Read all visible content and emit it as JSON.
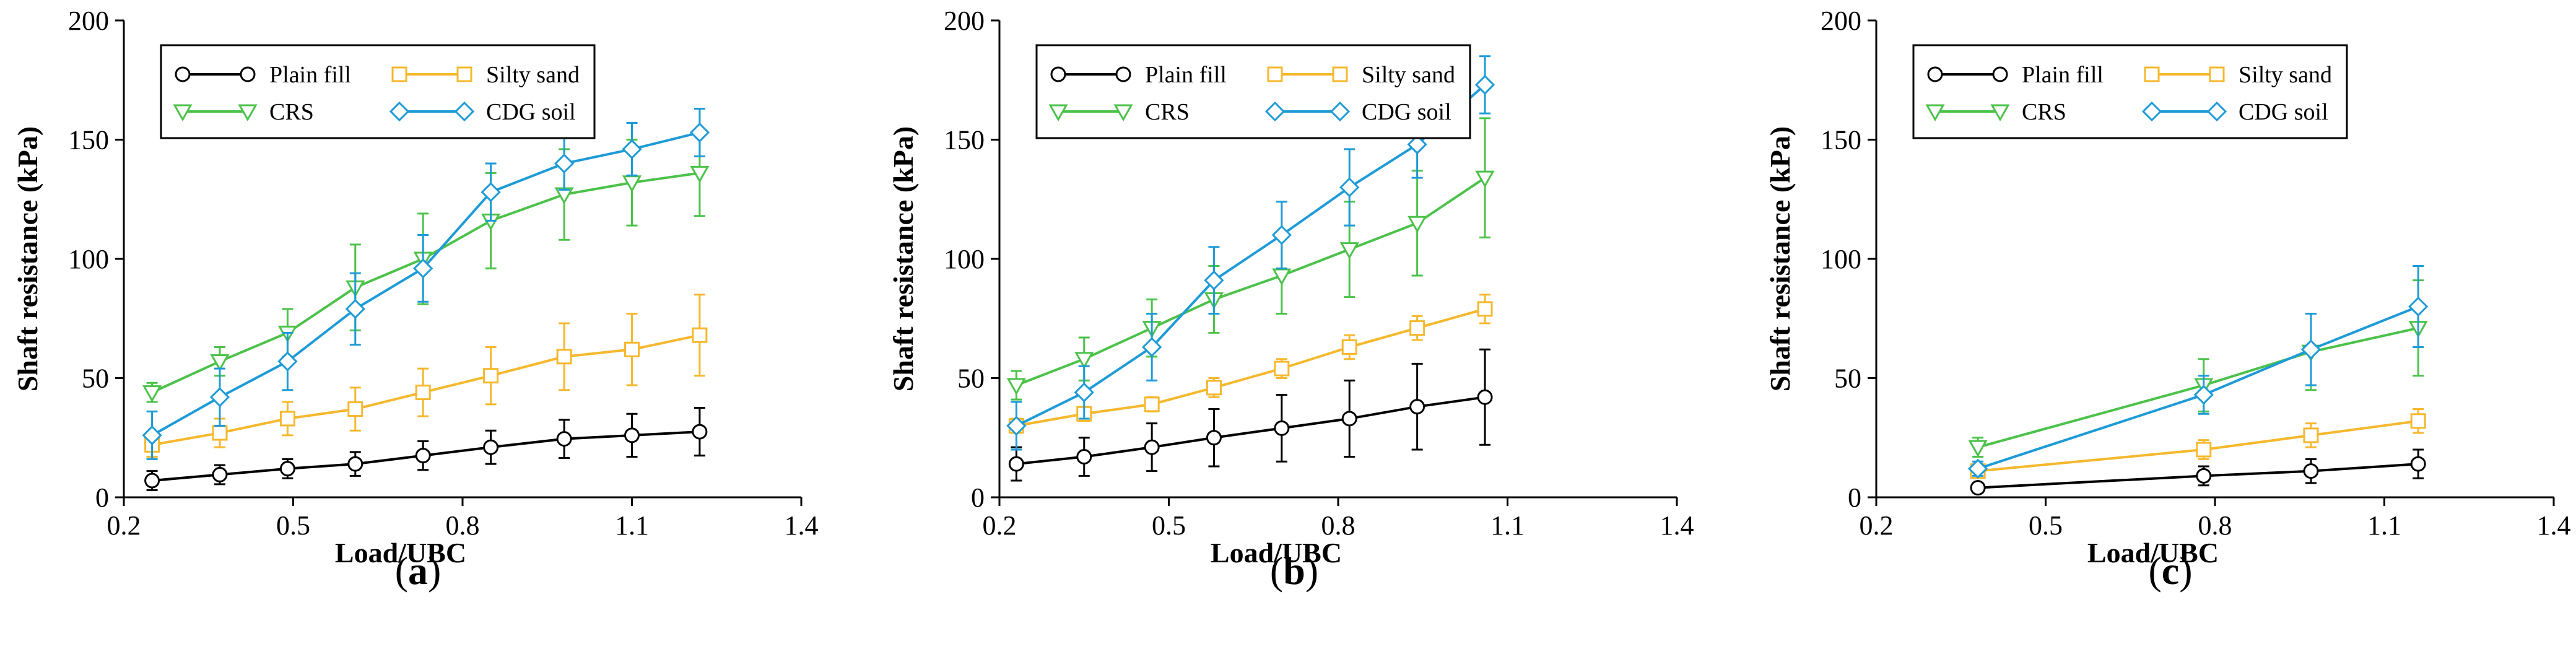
{
  "colors": {
    "plain_fill": "#000000",
    "silty_sand": "#F5B82E",
    "crs": "#4CC24A",
    "cdg_soil": "#1E9BD7"
  },
  "panel_labels": [
    {
      "open": "(",
      "letter": "a",
      "close": ")"
    },
    {
      "open": "(",
      "letter": "b",
      "close": ")"
    },
    {
      "open": "(",
      "letter": "c",
      "close": ")"
    }
  ],
  "chart_data": [
    {
      "type": "line",
      "panel": "a",
      "xlabel": "Load/UBC",
      "ylabel": "Shaft resistance (kPa)",
      "xlim": [
        0.2,
        1.4
      ],
      "ylim": [
        0,
        200
      ],
      "xticks": [
        "0.2",
        "0.5",
        "0.8",
        "1.1",
        "1.4"
      ],
      "yticks": [
        "0",
        "50",
        "100",
        "150",
        "200"
      ],
      "legend_position": "top-left",
      "series": [
        {
          "name": "Plain fill",
          "key": "plain_fill",
          "marker": "circle",
          "x": [
            0.25,
            0.37,
            0.49,
            0.61,
            0.73,
            0.85,
            0.98,
            1.1,
            1.22
          ],
          "y": [
            7,
            9.5,
            12,
            14,
            17.5,
            21,
            24.5,
            26,
            27.5
          ],
          "err": [
            4,
            4,
            4,
            5,
            6,
            7,
            8,
            9,
            10
          ]
        },
        {
          "name": "Silty sand",
          "key": "silty_sand",
          "marker": "square",
          "x": [
            0.25,
            0.37,
            0.49,
            0.61,
            0.73,
            0.85,
            0.98,
            1.1,
            1.22
          ],
          "y": [
            22,
            27,
            33,
            37,
            44,
            51,
            59,
            62,
            68
          ],
          "err": [
            5,
            6,
            7,
            9,
            10,
            12,
            14,
            15,
            17
          ]
        },
        {
          "name": "CRS",
          "key": "crs",
          "marker": "triangle-down",
          "x": [
            0.25,
            0.37,
            0.49,
            0.61,
            0.73,
            0.85,
            0.98,
            1.1,
            1.22
          ],
          "y": [
            44,
            57,
            69,
            88,
            100,
            116,
            127,
            132,
            136
          ],
          "err": [
            4,
            6,
            10,
            18,
            19,
            20,
            19,
            18,
            18
          ]
        },
        {
          "name": "CDG soil",
          "key": "cdg_soil",
          "marker": "diamond",
          "x": [
            0.25,
            0.37,
            0.49,
            0.61,
            0.73,
            0.85,
            0.98,
            1.1,
            1.22
          ],
          "y": [
            26,
            42,
            57,
            79,
            96,
            128,
            140,
            146,
            153
          ],
          "err": [
            10,
            12,
            12,
            15,
            14,
            12,
            11,
            11,
            10
          ]
        }
      ]
    },
    {
      "type": "line",
      "panel": "b",
      "xlabel": "Load/UBC",
      "ylabel": "Shaft resistance (kPa)",
      "xlim": [
        0.2,
        1.4
      ],
      "ylim": [
        0,
        200
      ],
      "xticks": [
        "0.2",
        "0.5",
        "0.8",
        "1.1",
        "1.4"
      ],
      "yticks": [
        "0",
        "50",
        "100",
        "150",
        "200"
      ],
      "legend_position": "top-left",
      "series": [
        {
          "name": "Plain fill",
          "key": "plain_fill",
          "marker": "circle",
          "x": [
            0.23,
            0.35,
            0.47,
            0.58,
            0.7,
            0.82,
            0.94,
            1.06
          ],
          "y": [
            14,
            17,
            21,
            25,
            29,
            33,
            38,
            42
          ],
          "err": [
            7,
            8,
            10,
            12,
            14,
            16,
            18,
            20
          ]
        },
        {
          "name": "Silty sand",
          "key": "silty_sand",
          "marker": "square",
          "x": [
            0.23,
            0.35,
            0.47,
            0.58,
            0.7,
            0.82,
            0.94,
            1.06
          ],
          "y": [
            30,
            35,
            39,
            46,
            54,
            63,
            71,
            79
          ],
          "err": [
            3,
            3,
            3,
            4,
            4,
            5,
            5,
            6
          ]
        },
        {
          "name": "CRS",
          "key": "crs",
          "marker": "triangle-down",
          "x": [
            0.23,
            0.35,
            0.47,
            0.58,
            0.7,
            0.82,
            0.94,
            1.06
          ],
          "y": [
            47,
            58,
            71,
            83,
            93,
            104,
            115,
            134
          ],
          "err": [
            6,
            9,
            12,
            14,
            16,
            20,
            22,
            25
          ]
        },
        {
          "name": "CDG soil",
          "key": "cdg_soil",
          "marker": "diamond",
          "x": [
            0.23,
            0.35,
            0.47,
            0.58,
            0.7,
            0.82,
            0.94,
            1.06
          ],
          "y": [
            30,
            44,
            63,
            91,
            110,
            130,
            148,
            173
          ],
          "err": [
            10,
            11,
            14,
            14,
            14,
            16,
            14,
            12
          ]
        }
      ]
    },
    {
      "type": "line",
      "panel": "c",
      "xlabel": "Load/UBC",
      "ylabel": "Shaft resistance (kPa)",
      "xlim": [
        0.2,
        1.4
      ],
      "ylim": [
        0,
        200
      ],
      "xticks": [
        "0.2",
        "0.5",
        "0.8",
        "1.1",
        "1.4"
      ],
      "yticks": [
        "0",
        "50",
        "100",
        "150",
        "200"
      ],
      "legend_position": "top-left",
      "series": [
        {
          "name": "Plain fill",
          "key": "plain_fill",
          "marker": "circle",
          "x": [
            0.38,
            0.78,
            0.97,
            1.16
          ],
          "y": [
            4,
            9,
            11,
            14
          ],
          "err": [
            2,
            4,
            5,
            6
          ]
        },
        {
          "name": "Silty sand",
          "key": "silty_sand",
          "marker": "square",
          "x": [
            0.38,
            0.78,
            0.97,
            1.16
          ],
          "y": [
            11,
            20,
            26,
            32
          ],
          "err": [
            2,
            4,
            5,
            5
          ]
        },
        {
          "name": "CRS",
          "key": "crs",
          "marker": "triangle-down",
          "x": [
            0.38,
            0.78,
            0.97,
            1.16
          ],
          "y": [
            21,
            47,
            61,
            71
          ],
          "err": [
            4,
            11,
            16,
            20
          ]
        },
        {
          "name": "CDG soil",
          "key": "cdg_soil",
          "marker": "diamond",
          "x": [
            0.38,
            0.78,
            0.97,
            1.16
          ],
          "y": [
            12,
            43,
            62,
            80
          ],
          "err": [
            3,
            8,
            15,
            17
          ]
        }
      ]
    }
  ]
}
